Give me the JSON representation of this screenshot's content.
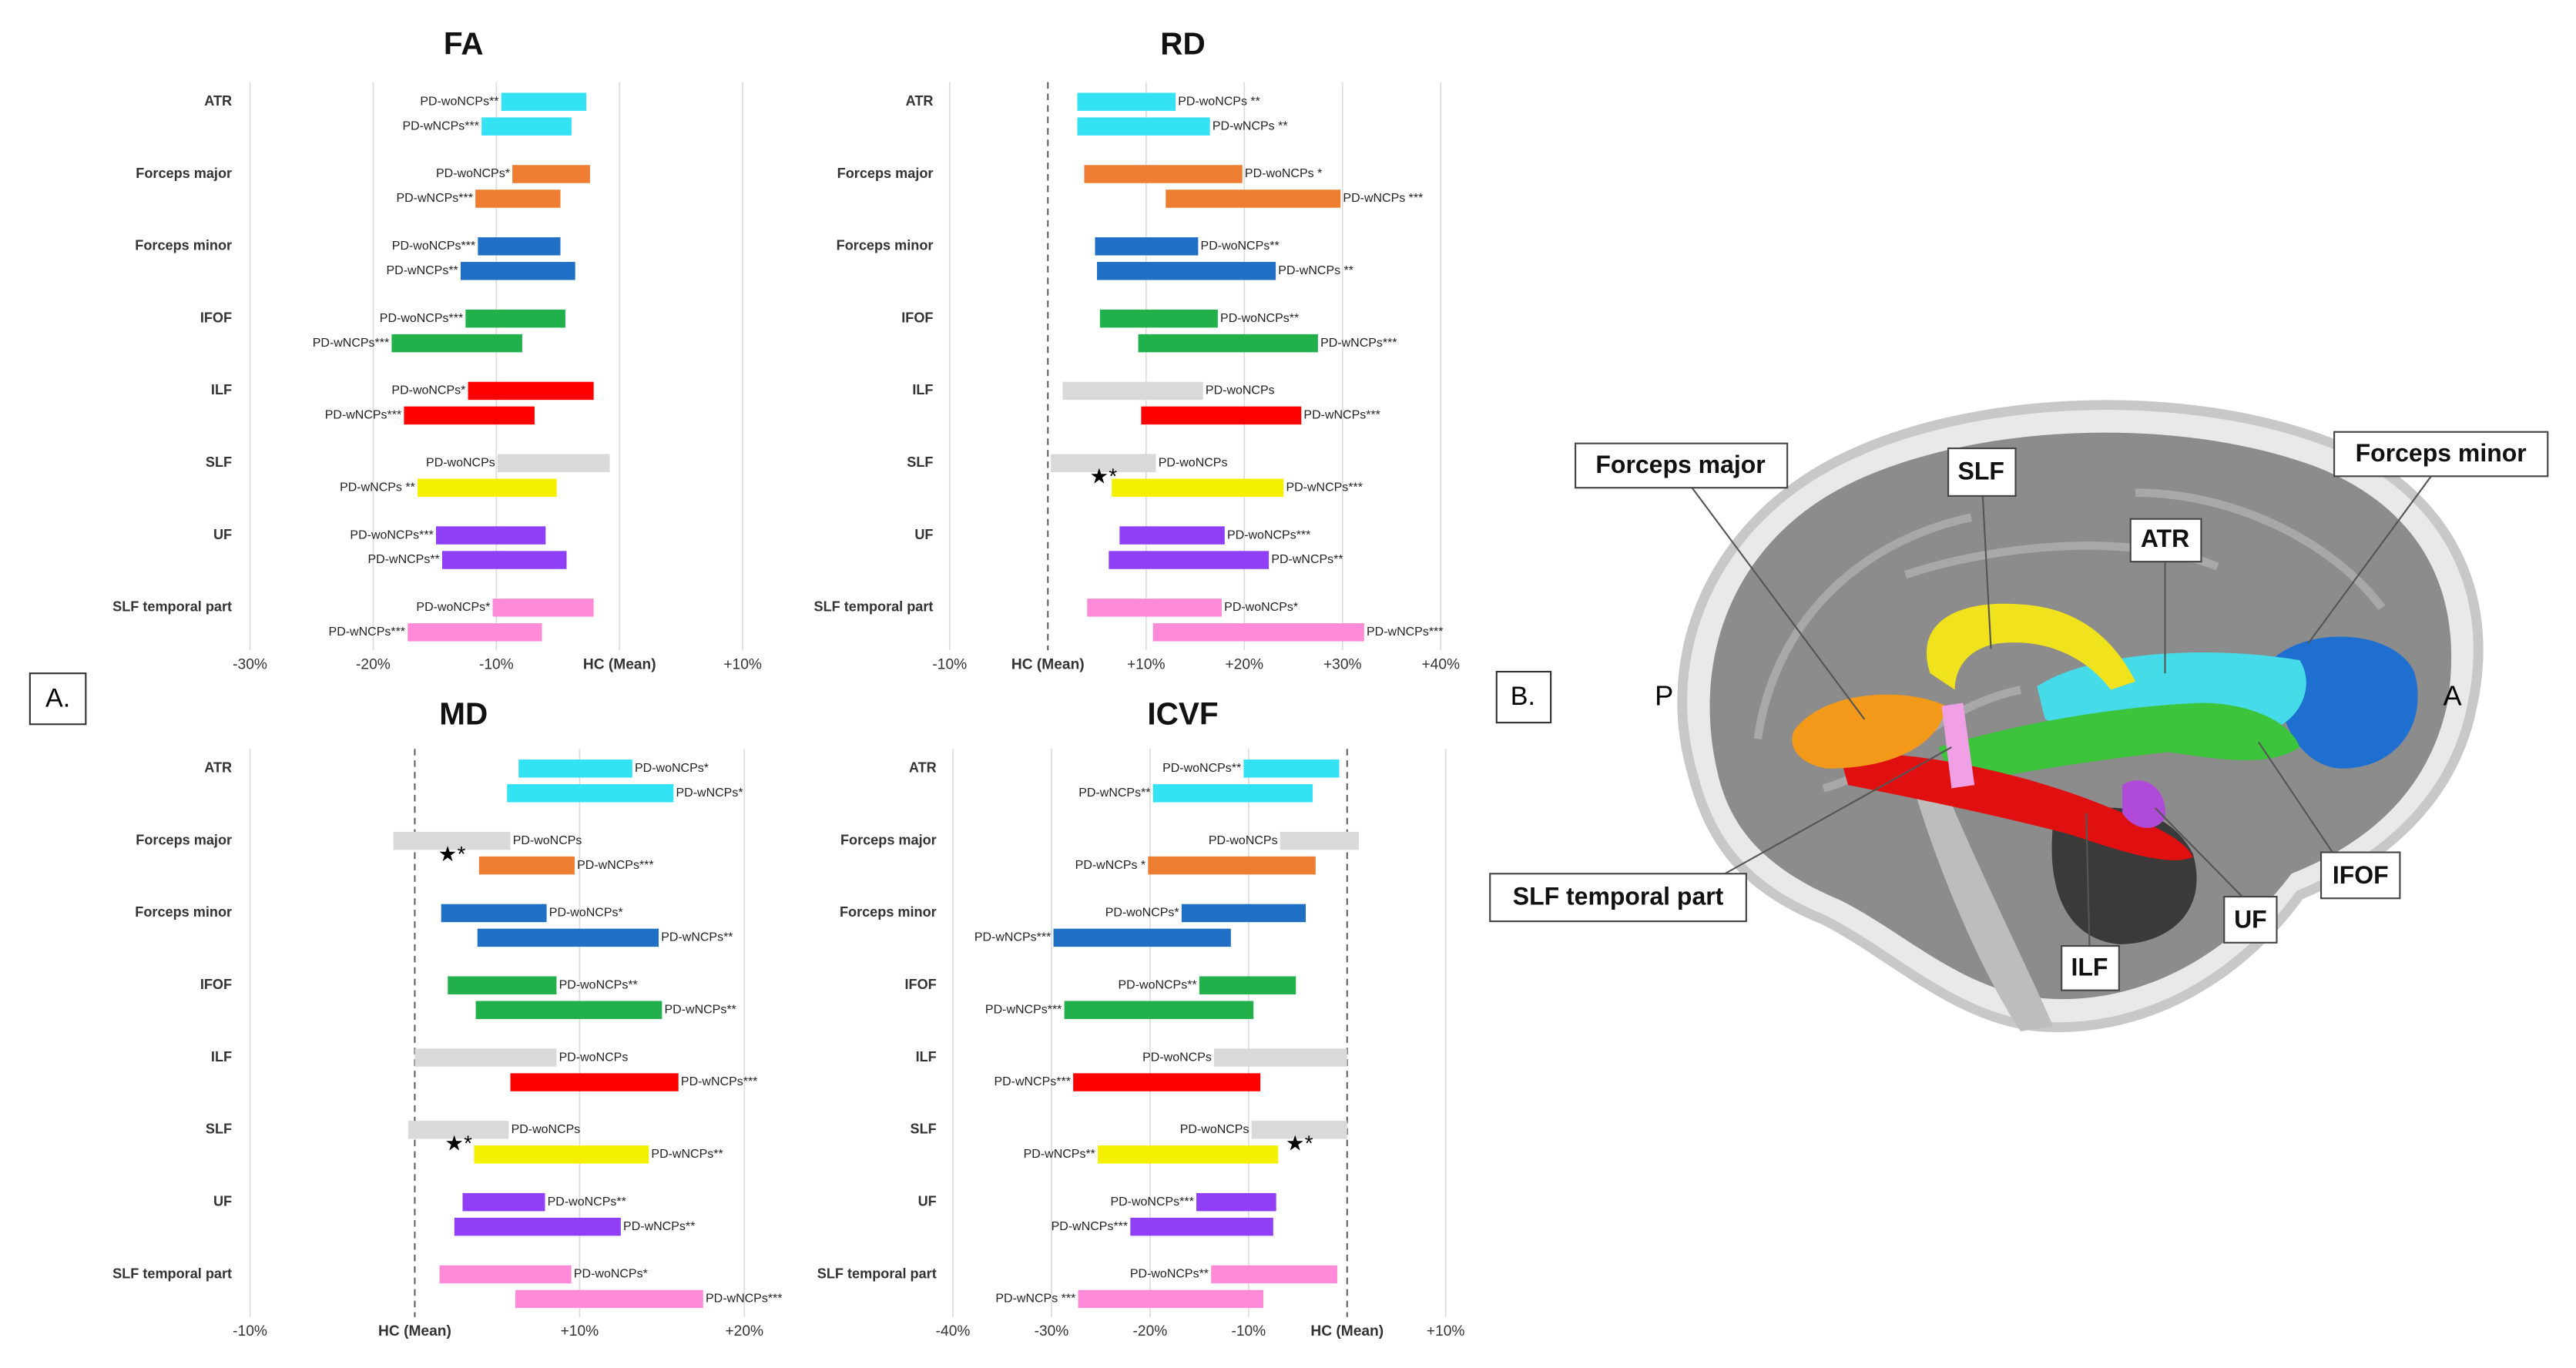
{
  "panel_a": {
    "label": "A."
  },
  "chart_data": [
    {
      "type": "bar",
      "title": "FA",
      "label_side": "left",
      "dashed_zero": false,
      "categories": [
        "ATR",
        "Forceps major",
        "Forceps minor",
        "IFOF",
        "ILF",
        "SLF",
        "UF",
        "SLF temporal part"
      ],
      "xlim": [
        -30,
        10
      ],
      "xticks": [
        {
          "value": -30,
          "label": "-30%"
        },
        {
          "value": -20,
          "label": "-20%"
        },
        {
          "value": -10,
          "label": "-10%"
        },
        {
          "value": 0,
          "label": "HC (Mean)"
        },
        {
          "value": 10,
          "label": "+10%"
        }
      ],
      "series": [
        {
          "values": [
            [
              -9.6,
              -2.7
            ],
            [
              -8.7,
              -2.4
            ],
            [
              -11.5,
              -4.8
            ],
            [
              -12.5,
              -4.4
            ],
            [
              -12.3,
              -2.1
            ],
            [
              -9.9,
              -0.8
            ],
            [
              -14.9,
              -6.0
            ],
            [
              -10.3,
              -2.1
            ]
          ],
          "value_labels": [
            "PD-woNCPs**",
            "PD-woNCPs*",
            "PD-woNCPs***",
            "PD-woNCPs***",
            "PD-woNCPs*",
            "PD-woNCPs",
            "PD-woNCPs***",
            "PD-woNCPs*"
          ],
          "colors": [
            "#33e3f4",
            "#ed7d31",
            "#1f6fc5",
            "#22b04b",
            "#ff0000",
            "#d9d9d9",
            "#8f3ff5",
            "#ff8ad8"
          ]
        },
        {
          "values": [
            [
              -11.2,
              -3.9
            ],
            [
              -11.7,
              -4.8
            ],
            [
              -12.9,
              -3.6
            ],
            [
              -18.5,
              -7.9
            ],
            [
              -17.5,
              -6.9
            ],
            [
              -16.4,
              -5.1
            ],
            [
              -14.4,
              -4.3
            ],
            [
              -17.2,
              -6.3
            ]
          ],
          "value_labels": [
            "PD-wNCPs***",
            "PD-wNCPs***",
            "PD-wNCPs**",
            "PD-wNCPs***",
            "PD-wNCPs***",
            "PD-wNCPs **",
            "PD-wNCPs**",
            "PD-wNCPs***"
          ],
          "colors": [
            "#33e3f4",
            "#ed7d31",
            "#1f6fc5",
            "#22b04b",
            "#ff0000",
            "#f5f000",
            "#8f3ff5",
            "#ff8ad8"
          ]
        }
      ]
    },
    {
      "type": "bar",
      "title": "RD",
      "label_side": "right",
      "dashed_zero": true,
      "categories": [
        "ATR",
        "Forceps major",
        "Forceps minor",
        "IFOF",
        "ILF",
        "SLF",
        "UF",
        "SLF temporal part"
      ],
      "xlim": [
        -10,
        40
      ],
      "xticks": [
        {
          "value": -10,
          "label": "-10%"
        },
        {
          "value": 0,
          "label": "HC (Mean)"
        },
        {
          "value": 10,
          "label": "+10%"
        },
        {
          "value": 20,
          "label": "+20%"
        },
        {
          "value": 30,
          "label": "+30%"
        },
        {
          "value": 40,
          "label": "+40%"
        }
      ],
      "series": [
        {
          "values": [
            [
              3.0,
              13.0
            ],
            [
              3.7,
              19.8
            ],
            [
              4.8,
              15.3
            ],
            [
              5.3,
              17.3
            ],
            [
              1.5,
              15.8
            ],
            [
              0.3,
              11.0
            ],
            [
              7.3,
              18.0
            ],
            [
              4.0,
              17.7
            ]
          ],
          "value_labels": [
            "PD-woNCPs **",
            "PD-woNCPs *",
            "PD-woNCPs**",
            "PD-woNCPs**",
            "PD-woNCPs",
            "PD-woNCPs",
            "PD-woNCPs***",
            "PD-woNCPs*"
          ],
          "colors": [
            "#33e3f4",
            "#ed7d31",
            "#1f6fc5",
            "#22b04b",
            "#d9d9d9",
            "#d9d9d9",
            "#8f3ff5",
            "#ff8ad8"
          ],
          "stars": [
            null,
            null,
            null,
            null,
            null,
            "★*",
            null,
            null
          ]
        },
        {
          "values": [
            [
              3.0,
              16.5
            ],
            [
              12.0,
              29.8
            ],
            [
              5.0,
              23.2
            ],
            [
              9.2,
              27.5
            ],
            [
              9.5,
              25.8
            ],
            [
              6.5,
              24.0
            ],
            [
              6.2,
              22.5
            ],
            [
              10.7,
              32.2
            ]
          ],
          "value_labels": [
            "PD-wNCPs **",
            "PD-wNCPs ***",
            "PD-wNCPs **",
            "PD-wNCPs***",
            "PD-wNCPs***",
            "PD-wNCPs***",
            "PD-wNCPs**",
            "PD-wNCPs***"
          ],
          "colors": [
            "#33e3f4",
            "#ed7d31",
            "#1f6fc5",
            "#22b04b",
            "#ff0000",
            "#f5f000",
            "#8f3ff5",
            "#ff8ad8"
          ]
        }
      ]
    },
    {
      "type": "bar",
      "title": "MD",
      "label_side": "right",
      "dashed_zero": true,
      "categories": [
        "ATR",
        "Forceps major",
        "Forceps minor",
        "IFOF",
        "ILF",
        "SLF",
        "UF",
        "SLF temporal part"
      ],
      "xlim": [
        -10,
        20
      ],
      "xticks": [
        {
          "value": -10,
          "label": "-10%"
        },
        {
          "value": 0,
          "label": "HC (Mean)"
        },
        {
          "value": 10,
          "label": "+10%"
        },
        {
          "value": 20,
          "label": "+20%"
        }
      ],
      "series": [
        {
          "values": [
            [
              6.3,
              13.2
            ],
            [
              -1.3,
              5.8
            ],
            [
              1.6,
              8.0
            ],
            [
              2.0,
              8.6
            ],
            [
              0.0,
              8.6
            ],
            [
              -0.4,
              5.7
            ],
            [
              2.9,
              7.9
            ],
            [
              1.5,
              9.5
            ]
          ],
          "value_labels": [
            "PD-woNCPs*",
            "PD-woNCPs",
            "PD-woNCPs*",
            "PD-woNCPs**",
            "PD-woNCPs",
            "PD-woNCPs",
            "PD-woNCPs**",
            "PD-woNCPs*"
          ],
          "colors": [
            "#33e3f4",
            "#d9d9d9",
            "#1f6fc5",
            "#22b04b",
            "#d9d9d9",
            "#d9d9d9",
            "#8f3ff5",
            "#ff8ad8"
          ],
          "stars": [
            null,
            "★*",
            null,
            null,
            null,
            "★*",
            null,
            null
          ]
        },
        {
          "values": [
            [
              5.6,
              15.7
            ],
            [
              3.9,
              9.7
            ],
            [
              3.8,
              14.8
            ],
            [
              3.7,
              15.0
            ],
            [
              5.8,
              16.0
            ],
            [
              3.6,
              14.2
            ],
            [
              2.4,
              12.5
            ],
            [
              6.1,
              17.5
            ]
          ],
          "value_labels": [
            "PD-wNCPs*",
            "PD-wNCPs***",
            "PD-wNCPs**",
            "PD-wNCPs**",
            "PD-wNCPs***",
            "PD-wNCPs**",
            "PD-wNCPs**",
            "PD-wNCPs***"
          ],
          "colors": [
            "#33e3f4",
            "#ed7d31",
            "#1f6fc5",
            "#22b04b",
            "#ff0000",
            "#f5f000",
            "#8f3ff5",
            "#ff8ad8"
          ]
        }
      ]
    },
    {
      "type": "bar",
      "title": "ICVF",
      "label_side": "left",
      "dashed_zero": true,
      "categories": [
        "ATR",
        "Forceps major",
        "Forceps minor",
        "IFOF",
        "ILF",
        "SLF",
        "UF",
        "SLF temporal part"
      ],
      "xlim": [
        -40,
        10
      ],
      "xticks": [
        {
          "value": -40,
          "label": "-40%"
        },
        {
          "value": -30,
          "label": "-30%"
        },
        {
          "value": -20,
          "label": "-20%"
        },
        {
          "value": -10,
          "label": "-10%"
        },
        {
          "value": 0,
          "label": "HC (Mean)"
        },
        {
          "value": 10,
          "label": "+10%"
        }
      ],
      "series": [
        {
          "values": [
            [
              -10.5,
              -0.8
            ],
            [
              -6.8,
              1.2
            ],
            [
              -16.8,
              -4.2
            ],
            [
              -15.0,
              -5.2
            ],
            [
              -13.5,
              0.0
            ],
            [
              -9.7,
              0.0
            ],
            [
              -15.3,
              -7.2
            ],
            [
              -13.8,
              -1.0
            ]
          ],
          "value_labels": [
            "PD-woNCPs**",
            "PD-woNCPs",
            "PD-woNCPs*",
            "PD-woNCPs**",
            "PD-woNCPs",
            "PD-woNCPs",
            "PD-woNCPs***",
            "PD-woNCPs**"
          ],
          "colors": [
            "#33e3f4",
            "#d9d9d9",
            "#1f6fc5",
            "#22b04b",
            "#d9d9d9",
            "#d9d9d9",
            "#8f3ff5",
            "#ff8ad8"
          ],
          "stars": [
            null,
            null,
            null,
            null,
            null,
            "★*",
            null,
            null
          ]
        },
        {
          "values": [
            [
              -19.7,
              -3.5
            ],
            [
              -20.2,
              -3.2
            ],
            [
              -29.8,
              -11.8
            ],
            [
              -28.7,
              -9.5
            ],
            [
              -27.8,
              -8.8
            ],
            [
              -25.3,
              -7.0
            ],
            [
              -22.0,
              -7.5
            ],
            [
              -27.3,
              -8.5
            ]
          ],
          "value_labels": [
            "PD-wNCPs**",
            "PD-wNCPs *",
            "PD-wNCPs***",
            "PD-wNCPs***",
            "PD-wNCPs***",
            "PD-wNCPs**",
            "PD-wNCPs***",
            "PD-wNCPs ***"
          ],
          "colors": [
            "#33e3f4",
            "#ed7d31",
            "#1f6fc5",
            "#22b04b",
            "#ff0000",
            "#f5f000",
            "#8f3ff5",
            "#ff8ad8"
          ]
        }
      ]
    }
  ],
  "panel_b": {
    "label": "B.",
    "posterior": "P",
    "anterior": "A",
    "tracts": [
      "Forceps major",
      "SLF",
      "ATR",
      "Forceps minor",
      "IFOF",
      "UF",
      "ILF",
      "SLF temporal part"
    ]
  }
}
